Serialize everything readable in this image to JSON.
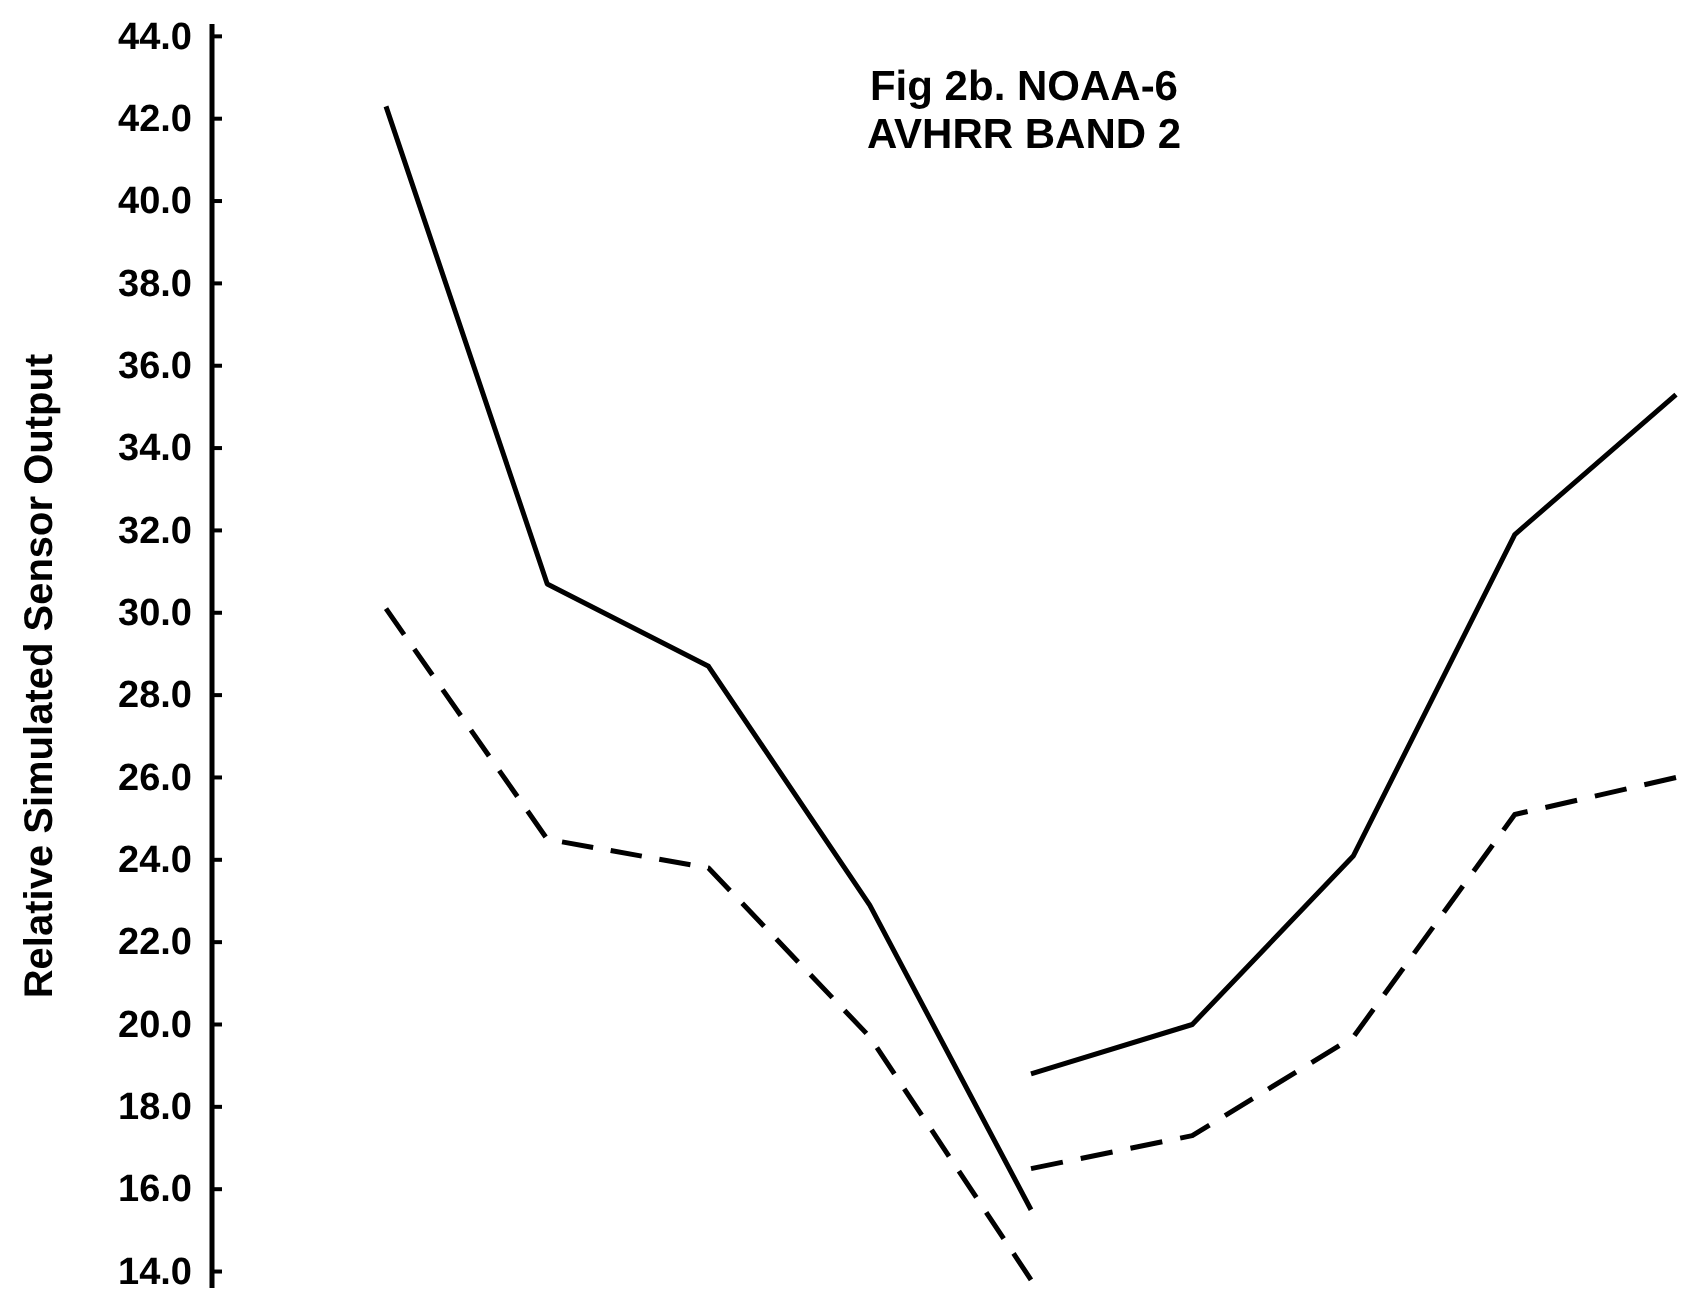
{
  "chart_data": {
    "type": "line",
    "title": "Fig 2b. NOAA-6\nAVHRR BAND 2",
    "ylabel": "Relative Simulated Sensor Output",
    "categories": [
      null,
      null,
      null,
      null,
      null,
      null,
      null,
      null,
      null
    ],
    "series": [
      {
        "color": "#000000",
        "line_style": "solid",
        "values": [
          42.3,
          30.7,
          28.7,
          22.9,
          15.5,
          null,
          null,
          null,
          null
        ]
      },
      {
        "color": "#000000",
        "line_style": "solid",
        "values": [
          null,
          null,
          null,
          null,
          18.8,
          20.0,
          24.1,
          31.9,
          35.3
        ]
      },
      {
        "color": "#000000",
        "line_style": "dashed",
        "values": [
          30.1,
          24.5,
          23.8,
          19.7,
          13.8,
          null,
          null,
          null,
          null
        ]
      },
      {
        "color": "#000000",
        "line_style": "dashed",
        "values": [
          null,
          null,
          null,
          null,
          16.5,
          17.3,
          19.7,
          25.1,
          26.0
        ]
      }
    ],
    "ylim": [
      13.6,
      44.3
    ],
    "yticks": [
      {
        "value": 14,
        "label": "14.0"
      },
      {
        "value": 16,
        "label": "16.0"
      },
      {
        "value": 18,
        "label": "18.0"
      },
      {
        "value": 20,
        "label": "20.0"
      },
      {
        "value": 22,
        "label": "22.0"
      },
      {
        "value": 24,
        "label": "24.0"
      },
      {
        "value": 26,
        "label": "26.0"
      },
      {
        "value": 28,
        "label": "28.0"
      },
      {
        "value": 30,
        "label": "30.0"
      },
      {
        "value": 32,
        "label": "32.0"
      },
      {
        "value": 34,
        "label": "34.0"
      },
      {
        "value": 36,
        "label": "36.0"
      },
      {
        "value": 38,
        "label": "38.0"
      },
      {
        "value": 40,
        "label": "40.0"
      },
      {
        "value": 42,
        "label": "42.0"
      },
      {
        "value": 44,
        "label": "44.0"
      }
    ],
    "tick_labels": "y",
    "grid": false,
    "marker": "none"
  }
}
